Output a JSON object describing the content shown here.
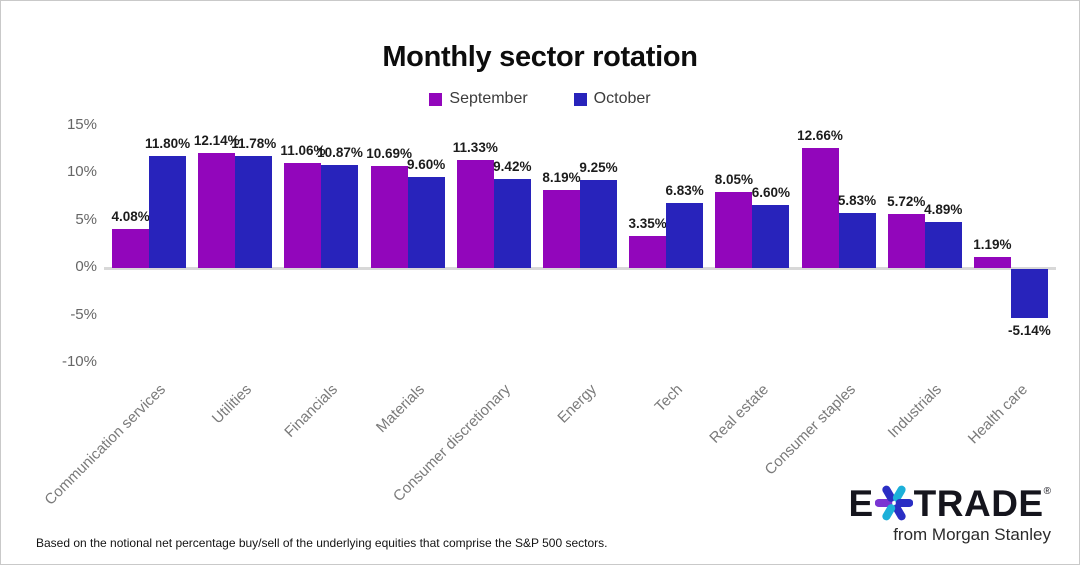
{
  "chart_data": {
    "type": "bar",
    "title": "Monthly sector rotation",
    "categories": [
      "Communication services",
      "Utilities",
      "Financials",
      "Materials",
      "Consumer discretionary",
      "Energy",
      "Tech",
      "Real estate",
      "Consumer staples",
      "Industrials",
      "Health care"
    ],
    "series": [
      {
        "name": "September",
        "color": "#9206BB",
        "values": [
          4.08,
          12.14,
          11.06,
          10.69,
          11.33,
          8.19,
          3.35,
          8.05,
          12.66,
          5.72,
          1.19
        ]
      },
      {
        "name": "October",
        "color": "#2823BB",
        "values": [
          11.8,
          11.78,
          10.87,
          9.6,
          9.42,
          9.25,
          6.83,
          6.6,
          5.83,
          4.89,
          -5.14
        ]
      }
    ],
    "value_label_suffix": "%",
    "value_label_decimals": 2,
    "y_ticks": [
      15,
      10,
      5,
      0,
      -5,
      -10
    ],
    "y_tick_suffix": "%",
    "ylim": [
      -10,
      15
    ],
    "grid": false,
    "legend_position": "top",
    "axis_line_color": "#d8d8d8"
  },
  "footnote": "Based on the notional net percentage buy/sell of the underlying equities that comprise the S&P 500 sectors.",
  "logo": {
    "name": "E*TRADE",
    "part_e": "E",
    "part_trade": "TRADE",
    "registered_mark": "®",
    "tagline": "from Morgan Stanley",
    "asterisk_colors": {
      "purple": "#7a35d2",
      "teal": "#1cb0d9",
      "blue": "#2a2ec4"
    }
  }
}
